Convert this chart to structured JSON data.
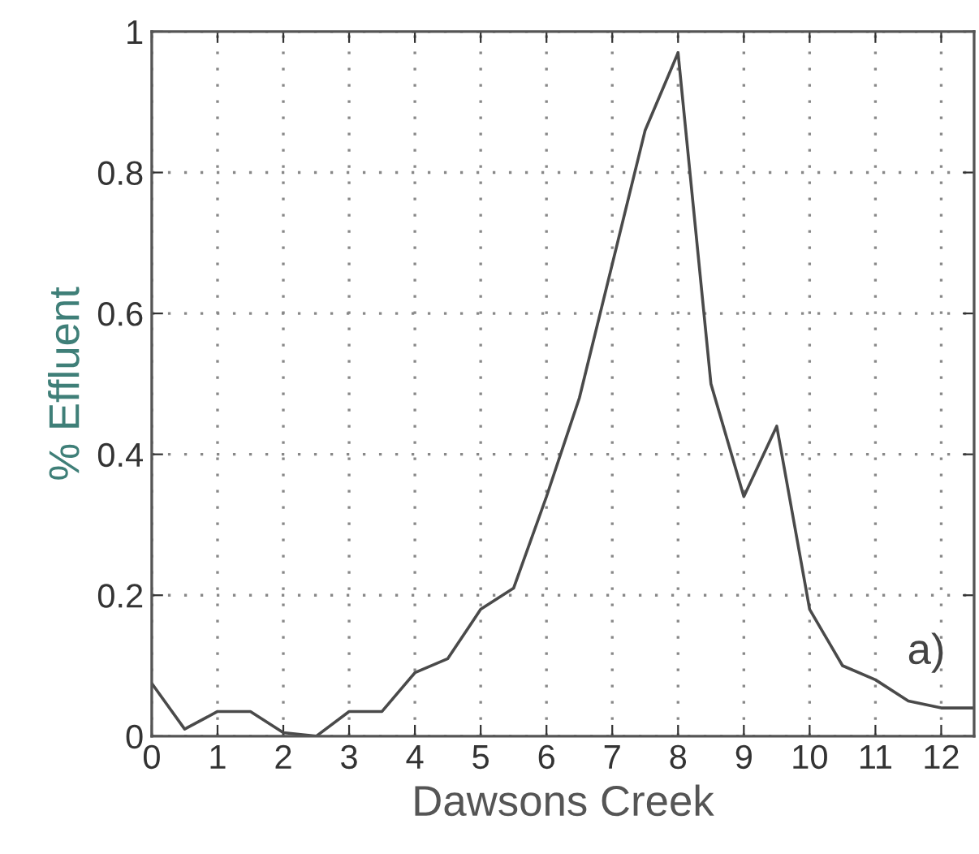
{
  "chart_data": {
    "type": "line",
    "xlabel": "Dawsons Creek",
    "ylabel": "% Effluent",
    "annotations": [
      "a)"
    ],
    "x": [
      0,
      0.5,
      1,
      1.5,
      2,
      2.5,
      3,
      3.5,
      4,
      4.5,
      5,
      5.5,
      6,
      6.5,
      7,
      7.5,
      8,
      8.5,
      9,
      9.5,
      10,
      10.5,
      11,
      11.5,
      12,
      12.5
    ],
    "series": [
      {
        "color": "#4a4a4a",
        "values": [
          0.075,
          0.01,
          0.035,
          0.035,
          0.005,
          0,
          0.035,
          0.035,
          0.09,
          0.11,
          0.18,
          0.21,
          0.34,
          0.48,
          0.67,
          0.86,
          0.97,
          0.5,
          0.34,
          0.44,
          0.18,
          0.1,
          0.08,
          0.05,
          0.04,
          0.04
        ]
      }
    ],
    "xlim": [
      0,
      12.5
    ],
    "xticks": [
      0,
      1,
      2,
      3,
      4,
      5,
      6,
      7,
      8,
      9,
      10,
      11,
      12
    ],
    "ylim": [
      0,
      1
    ],
    "yticks": [
      0,
      0.2,
      0.4,
      0.6,
      0.8,
      1
    ],
    "grid": true,
    "legend": false,
    "marker": "none",
    "line_style": "solid"
  }
}
